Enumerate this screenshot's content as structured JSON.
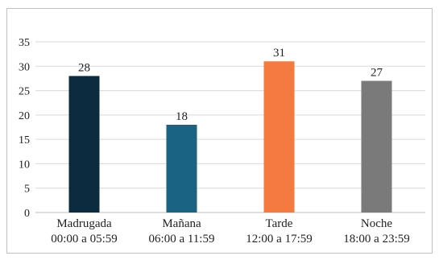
{
  "chart_data": {
    "type": "bar",
    "categories": [
      [
        "Madrugada",
        "00:00 a 05:59"
      ],
      [
        "Mañana",
        "06:00 a 11:59"
      ],
      [
        "Tarde",
        "12:00 a 17:59"
      ],
      [
        "Noche",
        "18:00 a 23:59"
      ]
    ],
    "values": [
      28,
      18,
      31,
      27
    ],
    "colors": [
      "#0d2b3e",
      "#1b6382",
      "#f47a40",
      "#7a7a7a"
    ],
    "ylim": [
      0,
      35
    ],
    "yticks": [
      0,
      5,
      10,
      15,
      20,
      25,
      30,
      35
    ],
    "grid": true,
    "gridColor": "#d9d9d9",
    "title": "",
    "xlabel": "",
    "ylabel": ""
  }
}
